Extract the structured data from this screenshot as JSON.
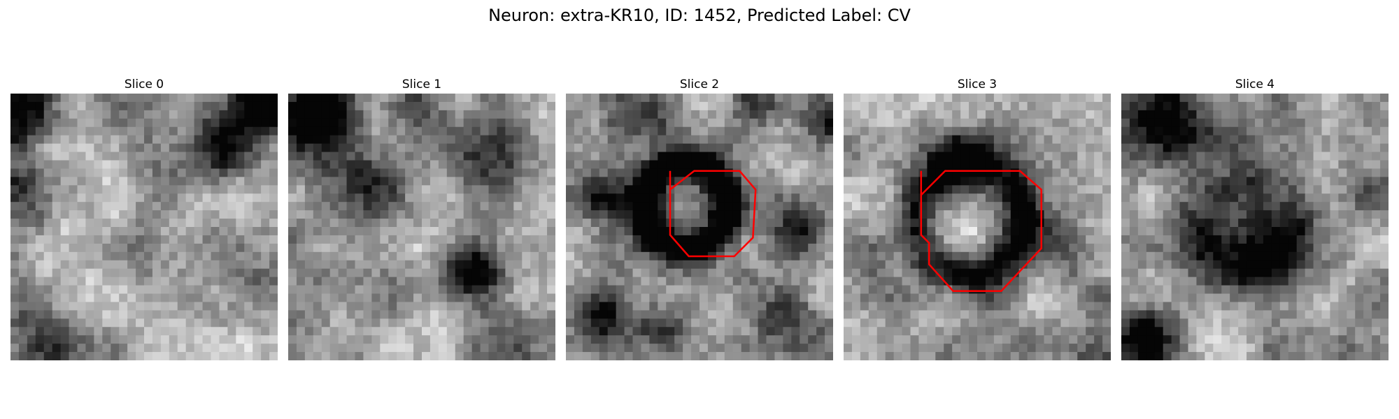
{
  "figure": {
    "title": "Neuron: extra-KR10, ID: 1452, Predicted Label: CV"
  },
  "panels": [
    {
      "title": "Slice 0",
      "has_contour": false
    },
    {
      "title": "Slice 1",
      "has_contour": false
    },
    {
      "title": "Slice 2",
      "has_contour": true
    },
    {
      "title": "Slice 3",
      "has_contour": true
    },
    {
      "title": "Slice 4",
      "has_contour": false
    }
  ],
  "colors": {
    "contour": "#ff0000",
    "colormap": "grayscale"
  }
}
